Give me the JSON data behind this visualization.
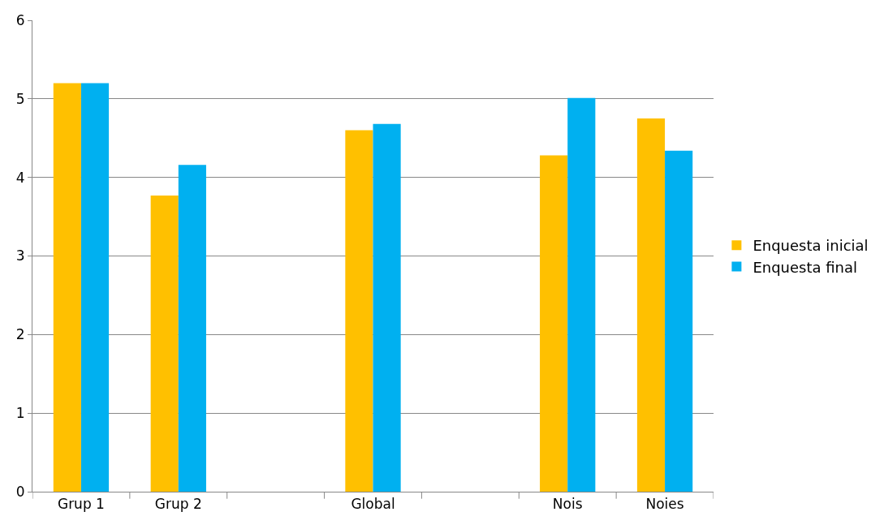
{
  "chart_data": {
    "type": "bar",
    "categories": [
      "Grup 1",
      "Grup 2",
      null,
      "Global",
      null,
      "Nois",
      "Noies"
    ],
    "series": [
      {
        "name": "Enquesta inicial",
        "color": "#ffc000",
        "values": [
          5.2,
          3.77,
          null,
          4.6,
          null,
          4.28,
          4.75
        ]
      },
      {
        "name": "Enquesta final",
        "color": "#00b0f0",
        "values": [
          5.2,
          4.16,
          null,
          4.68,
          null,
          5.01,
          4.34
        ]
      }
    ],
    "ylim": [
      0,
      6
    ],
    "yticks": [
      0,
      1,
      2,
      3,
      4,
      5,
      6
    ],
    "grid": "y",
    "legend": "right"
  }
}
